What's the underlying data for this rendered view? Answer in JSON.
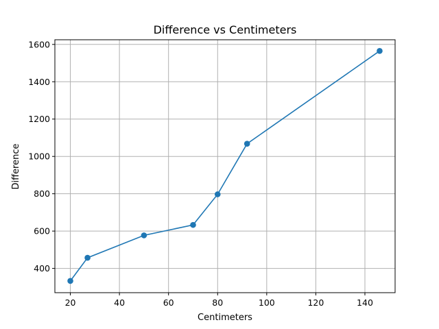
{
  "chart_data": {
    "type": "line",
    "title": "Difference vs Centimeters",
    "xlabel": "Centimeters",
    "ylabel": "Difference",
    "xlim": [
      13.7,
      152.3
    ],
    "ylim": [
      270,
      1625
    ],
    "xticks": [
      20,
      40,
      60,
      80,
      100,
      120,
      140
    ],
    "yticks": [
      400,
      600,
      800,
      1000,
      1200,
      1400,
      1600
    ],
    "grid": true,
    "color": "#1f77b4",
    "marker": "circle",
    "series": [
      {
        "x": [
          20,
          27,
          50,
          70,
          80,
          92,
          146
        ],
        "y": [
          333,
          457,
          577,
          633,
          797,
          1068,
          1565
        ]
      }
    ]
  }
}
